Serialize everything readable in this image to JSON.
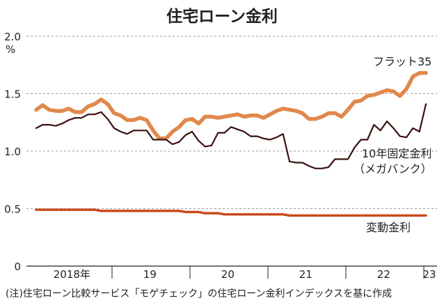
{
  "chart_data": {
    "type": "line",
    "title": "住宅ローン金利",
    "y_unit": "%",
    "ylim": [
      0,
      2.0
    ],
    "y_ticks": [
      "0",
      "0.5",
      "1.0",
      "1.5",
      "2.0"
    ],
    "x_ticks": [
      "2018年",
      "19",
      "20",
      "21",
      "22",
      "23"
    ],
    "grid": "horizontal dashed",
    "x_months": [
      "2018-01",
      "2018-02",
      "2018-03",
      "2018-04",
      "2018-05",
      "2018-06",
      "2018-07",
      "2018-08",
      "2018-09",
      "2018-10",
      "2018-11",
      "2018-12",
      "2019-01",
      "2019-02",
      "2019-03",
      "2019-04",
      "2019-05",
      "2019-06",
      "2019-07",
      "2019-08",
      "2019-09",
      "2019-10",
      "2019-11",
      "2019-12",
      "2020-01",
      "2020-02",
      "2020-03",
      "2020-04",
      "2020-05",
      "2020-06",
      "2020-07",
      "2020-08",
      "2020-09",
      "2020-10",
      "2020-11",
      "2020-12",
      "2021-01",
      "2021-02",
      "2021-03",
      "2021-04",
      "2021-05",
      "2021-06",
      "2021-07",
      "2021-08",
      "2021-09",
      "2021-10",
      "2021-11",
      "2021-12",
      "2022-01",
      "2022-02",
      "2022-03",
      "2022-04",
      "2022-05",
      "2022-06",
      "2022-07",
      "2022-08",
      "2022-09",
      "2022-10",
      "2022-11",
      "2022-12",
      "2023-01"
    ],
    "series": [
      {
        "name": "フラット35",
        "color": "#e0884b",
        "values": [
          1.36,
          1.4,
          1.36,
          1.35,
          1.35,
          1.37,
          1.34,
          1.34,
          1.39,
          1.41,
          1.45,
          1.41,
          1.33,
          1.31,
          1.27,
          1.27,
          1.29,
          1.27,
          1.18,
          1.11,
          1.11,
          1.17,
          1.21,
          1.27,
          1.28,
          1.24,
          1.3,
          1.3,
          1.29,
          1.3,
          1.31,
          1.32,
          1.3,
          1.31,
          1.31,
          1.29,
          1.32,
          1.35,
          1.37,
          1.36,
          1.35,
          1.33,
          1.28,
          1.28,
          1.3,
          1.33,
          1.33,
          1.3,
          1.36,
          1.43,
          1.44,
          1.48,
          1.49,
          1.51,
          1.53,
          1.52,
          1.48,
          1.54,
          1.65,
          1.68,
          1.68
        ]
      },
      {
        "name": "10年固定金利（メガバンク）",
        "color": "#3a1010",
        "values": [
          1.2,
          1.23,
          1.23,
          1.22,
          1.24,
          1.27,
          1.29,
          1.29,
          1.32,
          1.32,
          1.34,
          1.28,
          1.2,
          1.17,
          1.15,
          1.18,
          1.18,
          1.18,
          1.1,
          1.1,
          1.1,
          1.06,
          1.08,
          1.14,
          1.17,
          1.09,
          1.04,
          1.05,
          1.16,
          1.16,
          1.21,
          1.19,
          1.17,
          1.13,
          1.13,
          1.11,
          1.1,
          1.12,
          1.15,
          0.91,
          0.9,
          0.9,
          0.87,
          0.85,
          0.85,
          0.86,
          0.93,
          0.93,
          0.93,
          1.03,
          1.1,
          1.1,
          1.23,
          1.18,
          1.26,
          1.2,
          1.13,
          1.12,
          1.2,
          1.17,
          1.41
        ]
      },
      {
        "name": "変動金利",
        "color": "#cc4a1c",
        "values": [
          0.49,
          0.49,
          0.49,
          0.49,
          0.49,
          0.49,
          0.49,
          0.49,
          0.49,
          0.49,
          0.48,
          0.48,
          0.48,
          0.48,
          0.48,
          0.48,
          0.48,
          0.48,
          0.48,
          0.48,
          0.48,
          0.48,
          0.48,
          0.47,
          0.47,
          0.47,
          0.46,
          0.46,
          0.46,
          0.45,
          0.45,
          0.45,
          0.45,
          0.45,
          0.45,
          0.45,
          0.45,
          0.45,
          0.45,
          0.44,
          0.44,
          0.44,
          0.44,
          0.44,
          0.44,
          0.44,
          0.44,
          0.44,
          0.44,
          0.44,
          0.44,
          0.44,
          0.44,
          0.44,
          0.44,
          0.44,
          0.44,
          0.44,
          0.44,
          0.44,
          0.44
        ]
      }
    ],
    "series_labels": {
      "flat35": "フラット35",
      "fixed_line1": "10年固定金利",
      "fixed_line2": "（メガバンク）",
      "variable": "変動金利"
    },
    "note": "(注)住宅ローン比較サービス「モゲチェック」の住宅ローン金利インデックスを基に作成"
  }
}
